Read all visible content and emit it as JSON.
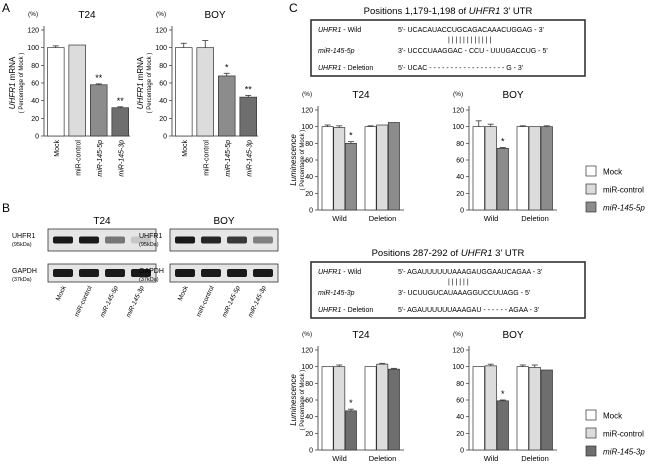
{
  "panel_labels": {
    "a": "A",
    "b": "B",
    "c": "C"
  },
  "colors": {
    "mock": "#ffffff",
    "control": "#dcdcdc",
    "mir145_5p": "#8c8c8c",
    "mir145_3p": "#6e6e6e",
    "axis": "#333333",
    "band": "#1a1a1a"
  },
  "chart_data": [
    {
      "id": "a_t24",
      "type": "bar",
      "title": "T24",
      "ylabel": "UHFR1 mRNA",
      "ylabel_sub": "( Percentage of Mock )",
      "ylim": [
        0,
        120
      ],
      "ytick_values": [
        0,
        20,
        40,
        60,
        80,
        100,
        120
      ],
      "yticks": [
        "0",
        "20",
        "40",
        "60",
        "80",
        "100",
        "120"
      ],
      "unit": "(%)",
      "categories": [
        "Mock",
        "miR-control",
        "miR-145-5p",
        "miR-145-3p"
      ],
      "values": [
        100,
        103,
        58,
        32
      ],
      "errors": [
        2,
        0,
        1,
        1
      ],
      "significance": [
        "",
        "",
        "**",
        "**"
      ]
    },
    {
      "id": "a_boy",
      "type": "bar",
      "title": "BOY",
      "ylabel": "UHFR1 mRNA",
      "ylabel_sub": "( Percentage of Mock )",
      "ylim": [
        0,
        120
      ],
      "ytick_values": [
        0,
        20,
        40,
        60,
        80,
        100,
        120
      ],
      "yticks": [
        "0",
        "20",
        "40",
        "60",
        "80",
        "100",
        "120"
      ],
      "unit": "(%)",
      "categories": [
        "Mock",
        "miR-control",
        "miR-145-5p",
        "miR-145-3p"
      ],
      "values": [
        100,
        100,
        68,
        44
      ],
      "errors": [
        5,
        8,
        3,
        2
      ],
      "significance": [
        "",
        "",
        "*",
        "**"
      ]
    },
    {
      "id": "c_top_t24",
      "type": "bar",
      "title": "T24",
      "ylabel": "Luminescence",
      "ylabel_sub": "( Percentage of Mock )",
      "ylim": [
        0,
        120
      ],
      "ytick_values": [
        0,
        20,
        40,
        60,
        80,
        100,
        120
      ],
      "yticks": [
        "0",
        "20",
        "40",
        "60",
        "80",
        "100",
        "120"
      ],
      "unit": "(%)",
      "groups": [
        "Wild",
        "Deletion"
      ],
      "series": [
        {
          "name": "Mock",
          "values": [
            100,
            100
          ],
          "errors": [
            2,
            1
          ]
        },
        {
          "name": "miR-control",
          "values": [
            99,
            102
          ],
          "errors": [
            2,
            0
          ]
        },
        {
          "name": "miR-145-5p",
          "values": [
            80,
            105
          ],
          "errors": [
            2,
            0
          ]
        }
      ],
      "significance": [
        [
          "",
          "",
          "*"
        ],
        [
          "",
          "",
          ""
        ]
      ]
    },
    {
      "id": "c_top_boy",
      "type": "bar",
      "title": "BOY",
      "ylabel": "Luminescence",
      "ylabel_sub": "( Percentage of Mock )",
      "ylim": [
        0,
        120
      ],
      "ytick_values": [
        0,
        20,
        40,
        60,
        80,
        100,
        120
      ],
      "yticks": [
        "0",
        "20",
        "40",
        "60",
        "80",
        "100",
        "120"
      ],
      "unit": "(%)",
      "groups": [
        "Wild",
        "Deletion"
      ],
      "series": [
        {
          "name": "Mock",
          "values": [
            100,
            100
          ],
          "errors": [
            7,
            1
          ]
        },
        {
          "name": "miR-control",
          "values": [
            100,
            100
          ],
          "errors": [
            3,
            0
          ]
        },
        {
          "name": "miR-145-5p",
          "values": [
            74,
            100
          ],
          "errors": [
            1,
            1
          ]
        }
      ],
      "significance": [
        [
          "",
          "",
          "*"
        ],
        [
          "",
          "",
          ""
        ]
      ]
    },
    {
      "id": "c_bot_t24",
      "type": "bar",
      "title": "T24",
      "ylabel": "Luminescence",
      "ylabel_sub": "( Percentage of Mock )",
      "ylim": [
        0,
        120
      ],
      "ytick_values": [
        0,
        20,
        40,
        60,
        80,
        100,
        120
      ],
      "yticks": [
        "0",
        "20",
        "40",
        "60",
        "80",
        "100",
        "120"
      ],
      "unit": "(%)",
      "groups": [
        "Wild",
        "Deletion"
      ],
      "series": [
        {
          "name": "Mock",
          "values": [
            100,
            100
          ],
          "errors": [
            0,
            0
          ]
        },
        {
          "name": "miR-control",
          "values": [
            100,
            103
          ],
          "errors": [
            2,
            1
          ]
        },
        {
          "name": "miR-145-3p",
          "values": [
            47,
            97
          ],
          "errors": [
            2,
            1
          ]
        }
      ],
      "significance": [
        [
          "",
          "",
          "*"
        ],
        [
          "",
          "",
          ""
        ]
      ]
    },
    {
      "id": "c_bot_boy",
      "type": "bar",
      "title": "BOY",
      "ylabel": "Luminescence",
      "ylabel_sub": "( Percentage of Mock )",
      "ylim": [
        0,
        120
      ],
      "ytick_values": [
        0,
        20,
        40,
        60,
        80,
        100,
        120
      ],
      "yticks": [
        "0",
        "20",
        "40",
        "60",
        "80",
        "100",
        "120"
      ],
      "unit": "(%)",
      "groups": [
        "Wild",
        "Deletion"
      ],
      "series": [
        {
          "name": "Mock",
          "values": [
            100,
            100
          ],
          "errors": [
            0,
            2
          ]
        },
        {
          "name": "miR-control",
          "values": [
            101,
            99
          ],
          "errors": [
            2,
            3
          ]
        },
        {
          "name": "miR-145-3p",
          "values": [
            59,
            96
          ],
          "errors": [
            1,
            0
          ]
        }
      ],
      "significance": [
        [
          "",
          "",
          "*"
        ],
        [
          "",
          "",
          ""
        ]
      ]
    }
  ],
  "legends": {
    "top": {
      "items": [
        "Mock",
        "miR-control",
        "miR-145-5p"
      ]
    },
    "bottom": {
      "items": [
        "Mock",
        "miR-control",
        "miR-145-3p"
      ]
    }
  },
  "western": {
    "lanes": [
      "Mock",
      "miR-control",
      "miR-145-5p",
      "miR-145-3p"
    ],
    "t24": {
      "title": "T24",
      "rows": [
        {
          "label": "UHFR1",
          "size": "(95kDa)",
          "intensities": [
            1.0,
            1.0,
            0.55,
            0.15
          ]
        },
        {
          "label": "GAPDH",
          "size": "(37kDa)",
          "intensities": [
            1.0,
            1.0,
            1.0,
            1.0
          ]
        }
      ]
    },
    "boy": {
      "title": "BOY",
      "rows": [
        {
          "label": "UHFR1",
          "size": "(95kDa)",
          "intensities": [
            1.0,
            0.95,
            0.85,
            0.5
          ]
        },
        {
          "label": "GAPDH",
          "size": "(37kDa)",
          "intensities": [
            1.0,
            1.0,
            1.0,
            1.0
          ]
        }
      ]
    }
  },
  "seq_top": {
    "title_pre": "Positions 1,179-1,198 of ",
    "title_gene": "UHFR1",
    "title_post": " 3' UTR",
    "rows": [
      {
        "gene": "UHFR1",
        "suffix": " - Wild",
        "seq": "5'- UCACAUACCUGCAGACAAACUGGAG - 3'"
      },
      {
        "gene": "miR-145-5p",
        "suffix": "",
        "seq": "3'- UCCCUAAGGAC - CCU - UUUGACCUG - 5'"
      },
      {
        "gene": "UHFR1",
        "suffix": " - Deletion",
        "seq": "5'- UCAC - - - - - - - - - - - - - - - - - - G - 3'"
      }
    ],
    "pairs": "| | | | |     | | | | | | |"
  },
  "seq_bottom": {
    "title_pre": "Positions 287-292 of ",
    "title_gene": "UHFR1",
    "title_post": " 3' UTR",
    "rows": [
      {
        "gene": "UHFR1",
        "suffix": " - Wild",
        "seq": "5'- AGAUUUUUUAAAGAUGGAAUCAGAA - 3'"
      },
      {
        "gene": "miR-145-3p",
        "suffix": "",
        "seq": "3'- UCUUGUCAUAAAGGUCCUUAGG - 5'"
      },
      {
        "gene": "UHFR1",
        "suffix": " - Deletion",
        "seq": "5'- AGAUUUUUUAAAGAU - - - - - - AGAA - 3'"
      }
    ],
    "pairs": "| | | | | |"
  }
}
